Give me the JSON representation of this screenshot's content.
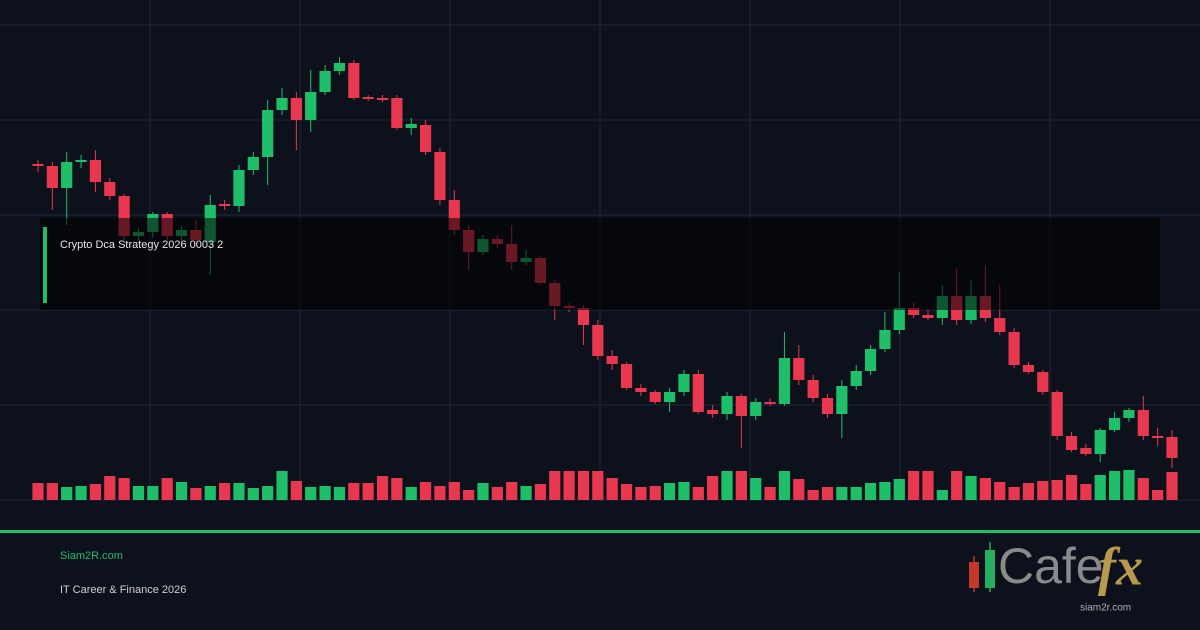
{
  "chart_data": {
    "type": "candlestick",
    "title": "Crypto Dca Strategy 2026 0003 2",
    "open": [
      336,
      334,
      312,
      338,
      340,
      318,
      304,
      264,
      268,
      286,
      264,
      270,
      258,
      296,
      294,
      330,
      343,
      390,
      402,
      380,
      408,
      429,
      437,
      403,
      402,
      402,
      372,
      375,
      348,
      300,
      270,
      248,
      261,
      256,
      238,
      242,
      217,
      194,
      192,
      175,
      144,
      136,
      112,
      108,
      98,
      108,
      126,
      90,
      86,
      104,
      84,
      98,
      96,
      142,
      120,
      102,
      86,
      114,
      129,
      151,
      170,
      192,
      185,
      182,
      204,
      180,
      204,
      182,
      168,
      135,
      128,
      108,
      64,
      52,
      46,
      70,
      82,
      90,
      64,
      63
    ],
    "high": [
      340,
      338,
      348,
      345,
      350,
      322,
      306,
      272,
      288,
      288,
      274,
      280,
      305,
      300,
      335,
      348,
      400,
      412,
      408,
      430,
      435,
      443,
      440,
      405,
      405,
      405,
      382,
      380,
      352,
      310,
      275,
      265,
      265,
      275,
      250,
      244,
      220,
      197,
      195,
      180,
      150,
      138,
      116,
      110,
      112,
      130,
      130,
      95,
      108,
      106,
      102,
      102,
      168,
      155,
      125,
      106,
      120,
      135,
      155,
      188,
      228,
      198,
      190,
      215,
      232,
      220,
      235,
      215,
      172,
      138,
      130,
      110,
      68,
      56,
      72,
      88,
      92,
      104,
      72,
      70
    ],
    "low": [
      328,
      290,
      275,
      332,
      308,
      300,
      260,
      260,
      262,
      260,
      255,
      256,
      225,
      290,
      288,
      325,
      315,
      385,
      350,
      368,
      405,
      425,
      400,
      399,
      398,
      370,
      365,
      345,
      295,
      265,
      230,
      245,
      252,
      230,
      235,
      215,
      180,
      188,
      155,
      140,
      130,
      110,
      104,
      96,
      88,
      104,
      86,
      82,
      80,
      52,
      80,
      94,
      94,
      115,
      98,
      82,
      62,
      110,
      125,
      148,
      166,
      182,
      180,
      175,
      175,
      176,
      178,
      165,
      132,
      126,
      105,
      60,
      48,
      44,
      38,
      68,
      78,
      60,
      54,
      32
    ],
    "close": [
      334,
      312,
      338,
      340,
      318,
      304,
      264,
      268,
      286,
      264,
      270,
      260,
      295,
      294,
      330,
      343,
      390,
      402,
      380,
      408,
      429,
      437,
      402,
      401,
      400,
      372,
      376,
      348,
      300,
      270,
      248,
      261,
      256,
      238,
      242,
      217,
      194,
      192,
      175,
      144,
      136,
      112,
      108,
      98,
      108,
      126,
      88,
      86,
      104,
      84,
      98,
      96,
      142,
      120,
      102,
      86,
      114,
      129,
      151,
      170,
      192,
      185,
      182,
      204,
      180,
      204,
      182,
      168,
      135,
      128,
      108,
      64,
      50,
      46,
      70,
      82,
      90,
      64,
      62,
      42
    ],
    "volume": [
      17,
      17,
      13,
      14,
      16,
      24,
      22,
      14,
      14,
      22,
      18,
      12,
      14,
      17,
      17,
      12,
      14,
      29,
      19,
      13,
      14,
      13,
      17,
      17,
      24,
      22,
      13,
      18,
      14,
      18,
      10,
      17,
      13,
      18,
      14,
      16,
      29,
      29,
      29,
      29,
      22,
      16,
      13,
      14,
      17,
      18,
      13,
      24,
      29,
      29,
      22,
      13,
      29,
      21,
      10,
      13,
      13,
      13,
      17,
      18,
      21,
      29,
      29,
      10,
      29,
      24,
      22,
      18,
      13,
      17,
      19,
      20,
      25,
      16,
      25,
      29,
      30,
      22,
      10,
      28
    ],
    "ylim": [
      0,
      500
    ],
    "volume_lim": [
      0,
      100
    ],
    "up_color": "#1fbf6a",
    "down_color": "#e8384f"
  },
  "footer": {
    "site": "Siam2R.com",
    "tagline": "IT Career & Finance 2026"
  },
  "logo": {
    "text": "Cafe",
    "accent": "fx",
    "url": "siam2r.com"
  }
}
